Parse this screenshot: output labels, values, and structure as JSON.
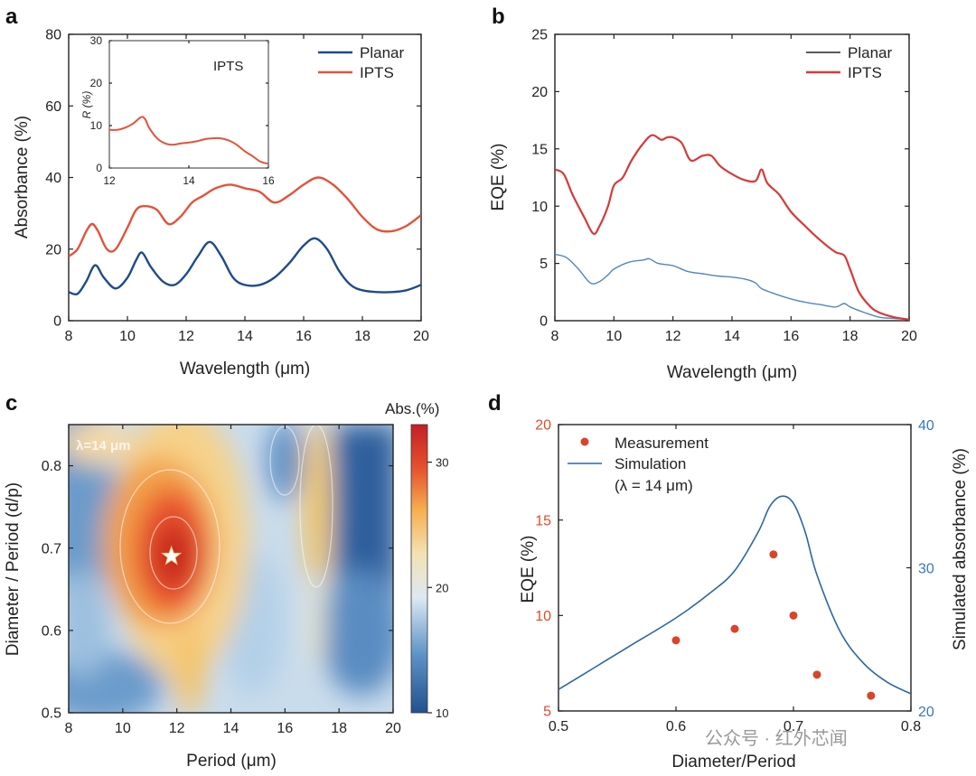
{
  "colors": {
    "planar": "#1e4a8c",
    "ipts": "#e2533a",
    "planar_b": "#4e86c4",
    "ipts_b": "#d63a3a",
    "meas": "#d9442a",
    "sim": "#2a66a8",
    "eqe_axis": "#e04a2a",
    "abs_axis": "#3a78b8"
  },
  "chart_data": [
    {
      "id": "a",
      "type": "line",
      "panel_label": "a",
      "xlabel": "Wavelength (μm)",
      "ylabel": "Absorbance (%)",
      "xlim": [
        8,
        20
      ],
      "ylim": [
        0,
        80
      ],
      "xticks": [
        "8",
        "10",
        "12",
        "14",
        "16",
        "18",
        "20"
      ],
      "yticks": [
        "0",
        "20",
        "40",
        "60",
        "80"
      ],
      "legend": [
        "Planar",
        "IPTS"
      ],
      "series": [
        {
          "name": "Planar",
          "x": [
            8,
            8.3,
            8.6,
            8.9,
            9.2,
            9.6,
            10.0,
            10.3,
            10.5,
            10.8,
            11.2,
            11.6,
            12.0,
            12.4,
            12.8,
            13.2,
            13.6,
            14.0,
            14.5,
            15.0,
            15.5,
            16.0,
            16.4,
            16.8,
            17.2,
            17.6,
            18.0,
            18.5,
            19.0,
            19.5,
            20.0
          ],
          "y": [
            8,
            7.5,
            11,
            15.5,
            12,
            9,
            12,
            17,
            19,
            15,
            11,
            10,
            13,
            18,
            22,
            18,
            12,
            10,
            10,
            12,
            16,
            21,
            23,
            20,
            14,
            10,
            8.5,
            8,
            8,
            8.5,
            10
          ]
        },
        {
          "name": "IPTS",
          "x": [
            8,
            8.3,
            8.6,
            8.8,
            9.0,
            9.3,
            9.6,
            10.0,
            10.3,
            10.6,
            11.0,
            11.4,
            11.8,
            12.2,
            12.6,
            13.0,
            13.5,
            14.0,
            14.5,
            15.0,
            15.5,
            16.0,
            16.5,
            17.0,
            17.5,
            18.0,
            18.5,
            19.0,
            19.5,
            20.0
          ],
          "y": [
            18,
            20,
            25,
            27,
            25,
            20,
            20,
            26,
            31,
            32,
            31,
            27,
            29,
            33,
            35,
            37,
            38,
            37,
            36,
            33,
            35,
            38,
            40,
            38,
            34,
            29,
            25.5,
            25,
            26.5,
            29.5
          ]
        }
      ],
      "inset": {
        "label": "IPTS",
        "xlabel": "",
        "ylabel": "R (%)",
        "xlim": [
          12,
          16
        ],
        "ylim": [
          0,
          30
        ],
        "xticks": [
          "12",
          "14",
          "16"
        ],
        "yticks": [
          "0",
          "10",
          "20",
          "30"
        ],
        "x": [
          12,
          12.2,
          12.4,
          12.6,
          12.8,
          12.9,
          13.0,
          13.2,
          13.4,
          13.6,
          13.8,
          14.0,
          14.2,
          14.4,
          14.6,
          14.8,
          15.0,
          15.2,
          15.4,
          15.6,
          15.8,
          16.0
        ],
        "y": [
          9,
          9,
          9.5,
          10.5,
          12,
          11.5,
          9.5,
          7,
          5.8,
          5.5,
          5.8,
          6,
          6.3,
          6.8,
          7,
          7,
          6.5,
          5.5,
          4,
          2.8,
          1.5,
          1
        ]
      }
    },
    {
      "id": "b",
      "type": "line",
      "panel_label": "b",
      "xlabel": "Wavelength (μm)",
      "ylabel": "EQE (%)",
      "xlim": [
        8,
        20
      ],
      "ylim": [
        0,
        25
      ],
      "xticks": [
        "8",
        "10",
        "12",
        "14",
        "16",
        "18",
        "20"
      ],
      "yticks": [
        "0",
        "5",
        "10",
        "15",
        "20",
        "25"
      ],
      "legend": [
        "Planar",
        "IPTS"
      ],
      "series": [
        {
          "name": "Planar",
          "x": [
            8,
            8.4,
            8.8,
            9.2,
            9.5,
            9.8,
            10.0,
            10.5,
            11.0,
            11.2,
            11.5,
            12.0,
            12.5,
            13.0,
            13.5,
            14.0,
            14.5,
            14.8,
            15.0,
            15.5,
            16.0,
            16.5,
            17.0,
            17.5,
            17.8,
            18.0,
            18.5,
            19.0,
            19.5,
            20.0
          ],
          "y": [
            5.8,
            5.5,
            4.5,
            3.3,
            3.4,
            4.0,
            4.5,
            5.1,
            5.3,
            5.4,
            5.0,
            4.8,
            4.3,
            4.1,
            3.9,
            3.8,
            3.6,
            3.3,
            2.8,
            2.3,
            1.9,
            1.6,
            1.4,
            1.2,
            1.5,
            1.2,
            0.7,
            0.3,
            0.2,
            0.1
          ]
        },
        {
          "name": "IPTS",
          "x": [
            8,
            8.3,
            8.6,
            9.0,
            9.3,
            9.5,
            9.8,
            10.0,
            10.3,
            10.6,
            11.0,
            11.3,
            11.6,
            11.8,
            12.0,
            12.3,
            12.6,
            13.0,
            13.3,
            13.6,
            14.0,
            14.4,
            14.8,
            15.0,
            15.2,
            15.6,
            16.0,
            16.5,
            17.0,
            17.5,
            17.8,
            18.0,
            18.3,
            18.7,
            19.0,
            19.5,
            20.0
          ],
          "y": [
            13.2,
            12.8,
            11.0,
            9.0,
            7.6,
            8.2,
            10.0,
            11.8,
            12.5,
            14.0,
            15.5,
            16.2,
            15.8,
            16.0,
            16.0,
            15.5,
            14.0,
            14.4,
            14.4,
            13.5,
            12.8,
            12.3,
            12.2,
            13.2,
            12.0,
            11.0,
            9.5,
            8.2,
            7.0,
            6.0,
            5.7,
            4.5,
            2.5,
            1.2,
            0.7,
            0.3,
            0.1
          ]
        }
      ]
    },
    {
      "id": "c",
      "type": "heatmap",
      "panel_label": "c",
      "xlabel": "Period (μm)",
      "ylabel": "Diameter / Period (d/p)",
      "xlim": [
        8,
        20
      ],
      "ylim": [
        0.5,
        0.85
      ],
      "xticks": [
        "8",
        "10",
        "12",
        "14",
        "16",
        "18",
        "20"
      ],
      "yticks": [
        "0.5",
        "0.6",
        "0.7",
        "0.8"
      ],
      "annotation": "λ=14 μm",
      "colorbar_title": "Abs.(%)",
      "colorbar_ticks": [
        "10",
        "20",
        "30"
      ],
      "colorbar_range": [
        10,
        33
      ],
      "peak": {
        "x": 11.8,
        "y": 0.69,
        "marker": "star"
      }
    },
    {
      "id": "d",
      "type": "scatter",
      "panel_label": "d",
      "xlabel": "Diameter/Period",
      "ylabel_left": "EQE (%)",
      "ylabel_right": "Simulated absorbance (%)",
      "xlim": [
        0.5,
        0.8
      ],
      "ylim_left": [
        5,
        20
      ],
      "ylim_right": [
        20,
        40
      ],
      "xticks": [
        "0.5",
        "0.6",
        "0.7",
        "0.8"
      ],
      "yticks_left": [
        "5",
        "10",
        "15",
        "20"
      ],
      "yticks_right": [
        "20",
        "30",
        "40"
      ],
      "legend": [
        "Measurement",
        "Simulation",
        "(λ = 14 μm)"
      ],
      "measurement": {
        "x": [
          0.6,
          0.65,
          0.683,
          0.7,
          0.72,
          0.766
        ],
        "y": [
          8.7,
          9.3,
          13.2,
          10.0,
          6.9,
          5.8
        ]
      },
      "simulation": {
        "x": [
          0.5,
          0.53,
          0.56,
          0.6,
          0.63,
          0.65,
          0.67,
          0.68,
          0.69,
          0.7,
          0.71,
          0.72,
          0.74,
          0.76,
          0.78,
          0.8
        ],
        "y": [
          21.5,
          23,
          24.5,
          26.5,
          28.3,
          29.8,
          32.5,
          34.3,
          35,
          34.5,
          32.5,
          29.5,
          25.5,
          23.3,
          22,
          21.2
        ]
      }
    }
  ],
  "watermark": "公众号 · 红外芯闻"
}
